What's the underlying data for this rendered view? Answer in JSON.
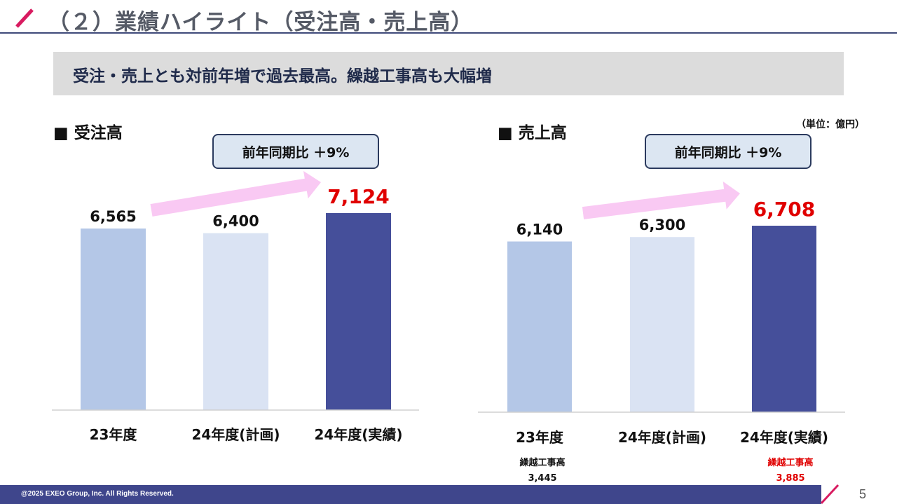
{
  "slide": {
    "title": "（２）業績ハイライト（受注高・売上高）",
    "banner": "受注・売上とも対前年増で過去最高。繰越工事高も大幅増",
    "unit_label": "（単位：億円）",
    "page_number": "5",
    "footer_copyright": "@2025 EXEO Group, Inc. All Rights Reserved.",
    "colors": {
      "accent_slash": "#d81b60",
      "navy": "#3f468c",
      "highlight_red": "#e00000"
    }
  },
  "orders": {
    "section_title": "■  受注高",
    "callout": "前年同期比 ＋9%"
  },
  "sales": {
    "section_title": "■  売上高",
    "callout": "前年同期比 ＋9%",
    "backlog": [
      {
        "label": "繰越工事高",
        "value": "3,445",
        "color": "#111111"
      },
      {
        "label": "繰越工事高",
        "value": "3,885",
        "color": "#e00000"
      }
    ]
  },
  "chart_data": [
    {
      "type": "bar",
      "title": "受注高",
      "categories": [
        "23年度",
        "24年度(計画)",
        "24年度(実績)"
      ],
      "values": [
        6565,
        6400,
        7124
      ],
      "value_labels": [
        "6,565",
        "6,400",
        "7,124"
      ],
      "bar_colors": [
        "#b4c7e7",
        "#dae3f3",
        "#454f9a"
      ],
      "label_colors": [
        "#111111",
        "#111111",
        "#e00000"
      ],
      "unit": "億円",
      "ylim": [
        0,
        7124
      ],
      "grid": false,
      "annotation": "前年同期比 ＋9%"
    },
    {
      "type": "bar",
      "title": "売上高",
      "categories": [
        "23年度",
        "24年度(計画)",
        "24年度(実績)"
      ],
      "values": [
        6140,
        6300,
        6708
      ],
      "value_labels": [
        "6,140",
        "6,300",
        "6,708"
      ],
      "bar_colors": [
        "#b4c7e7",
        "#dae3f3",
        "#454f9a"
      ],
      "label_colors": [
        "#111111",
        "#111111",
        "#e00000"
      ],
      "unit": "億円",
      "ylim": [
        0,
        6708
      ],
      "grid": false,
      "annotation": "前年同期比 ＋9%"
    }
  ]
}
